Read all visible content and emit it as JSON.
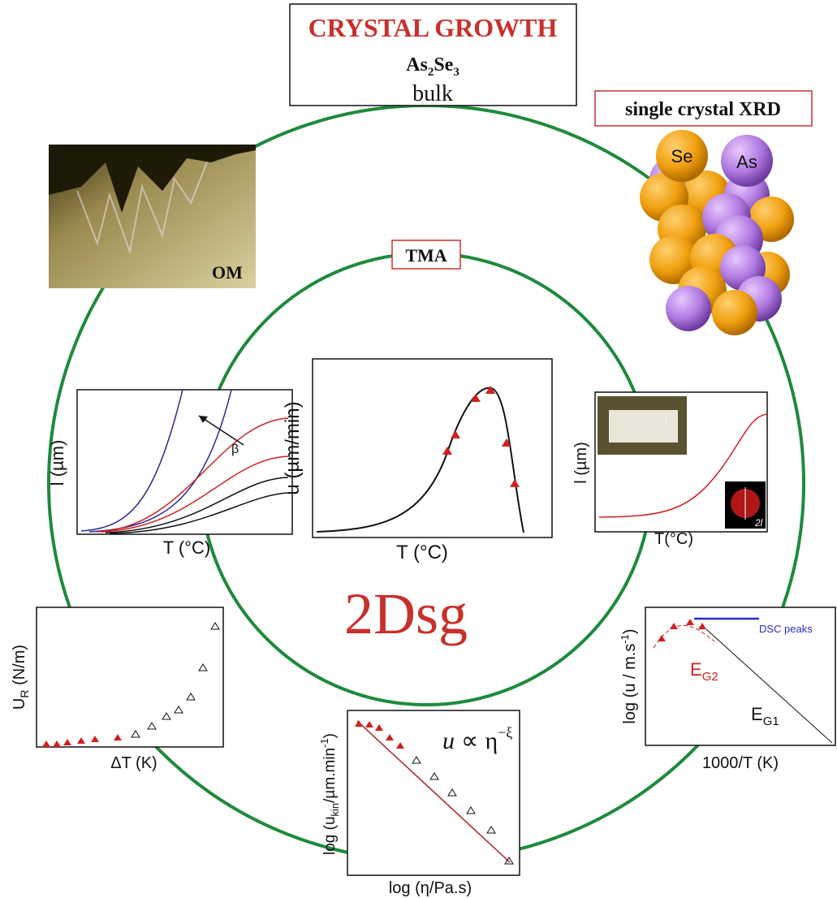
{
  "header": {
    "title": "CRYSTAL GROWTH",
    "formula": [
      "As",
      "2",
      "Se",
      "3"
    ],
    "subtitle": "bulk"
  },
  "xrd": {
    "label": "single crystal XRD",
    "atoms": [
      "Se",
      "As"
    ]
  },
  "om": {
    "label": "OM"
  },
  "tma": {
    "label": "TMA"
  },
  "center": {
    "label": "2Dsg"
  },
  "panels": {
    "left": {
      "ylabel": "l (µm)",
      "xlabel": "T (°C)",
      "arrow_label": "β"
    },
    "middle": {
      "ylabel": "u (µm/min)",
      "xlabel": "T (°C)"
    },
    "right": {
      "ylabel": "l (µm)",
      "xlabel": "T(°C)",
      "inset_label": "2l",
      "inset_small": "l"
    },
    "bottom_left": {
      "ylabel": [
        "U",
        "R",
        " (N/m)"
      ],
      "xlabel": "ΔT (K)"
    },
    "bottom_right": {
      "ylabel": [
        "log (u / m.s",
        "-1",
        ")"
      ],
      "xlabel": "1000/T (K)",
      "legend": "DSC peaks",
      "eg2": [
        "E",
        "G2"
      ],
      "eg1": [
        "E",
        "G1"
      ]
    },
    "bottom": {
      "ylabel": [
        "log (u",
        "kin",
        "/µm.min",
        "-1",
        ")"
      ],
      "xlabel": "log (η/Pa.s)",
      "formula": [
        "u",
        "∝",
        "η",
        "−ξ"
      ]
    }
  }
}
